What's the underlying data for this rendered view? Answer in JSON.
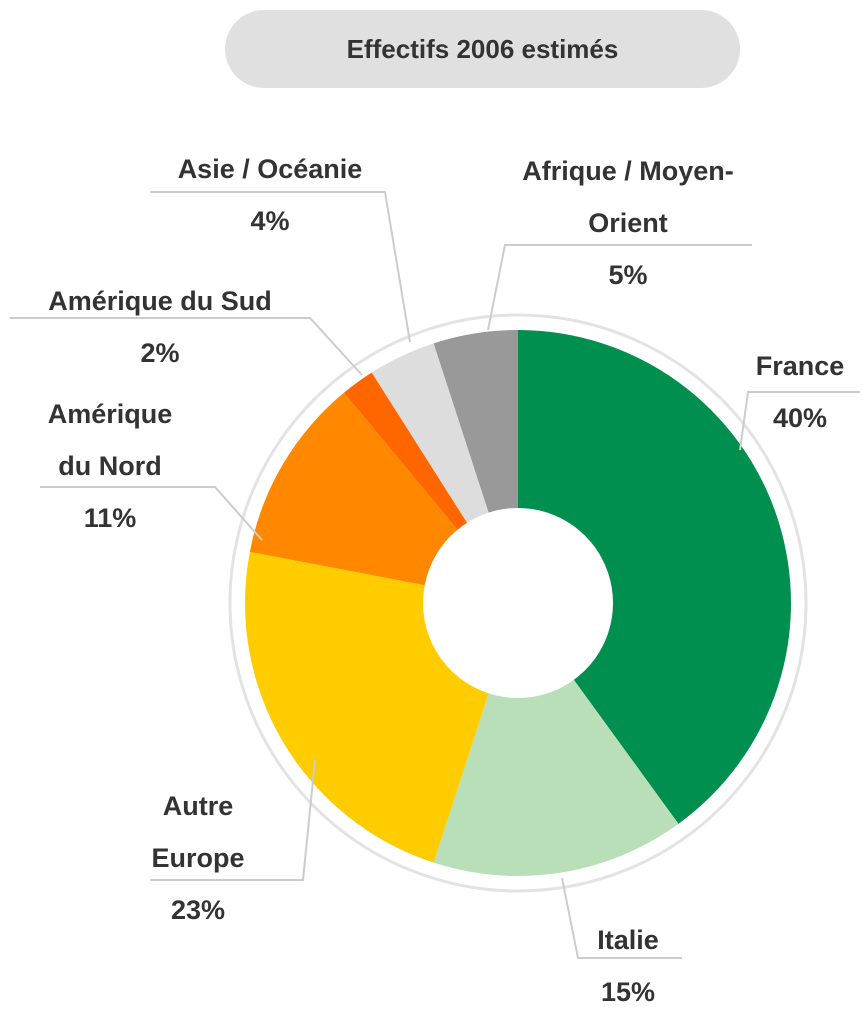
{
  "chart_data": {
    "type": "pie",
    "donut": true,
    "title": "Effectifs 2006 estimés",
    "categories": [
      "France",
      "Italie",
      "Autre Europe",
      "Amérique du Nord",
      "Amérique du Sud",
      "Asie / Océanie",
      "Afrique / Moyen-Orient"
    ],
    "values": [
      40,
      15,
      23,
      11,
      2,
      4,
      5
    ],
    "value_labels": [
      "40%",
      "15%",
      "23%",
      "11%",
      "2%",
      "4%",
      "5%"
    ],
    "colors": [
      "#008f4f",
      "#b9dfb9",
      "#ffcc00",
      "#ff8800",
      "#ff6600",
      "#dddddd",
      "#999999"
    ]
  }
}
